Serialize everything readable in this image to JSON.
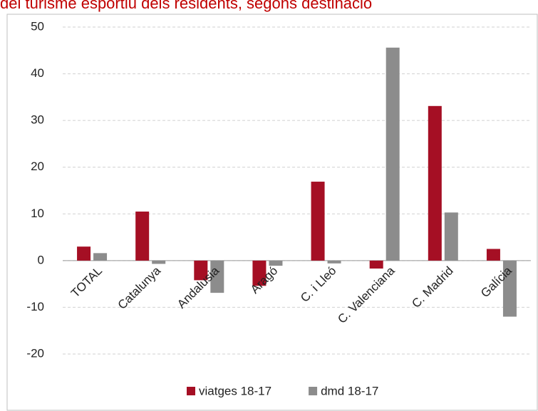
{
  "chart_data": {
    "type": "bar",
    "title": "del turisme esportiu dels residents, segons destinació",
    "categories": [
      "TOTAL",
      "Catalunya",
      "Andalusia",
      "Aragó",
      "C. i Lleó",
      "C. Valenciana",
      "C. Madrid",
      "Galícia"
    ],
    "series": [
      {
        "name": "viatges 18-17",
        "color": "#a50f24",
        "values": [
          3.0,
          10.5,
          -4.2,
          -5.4,
          16.9,
          -1.7,
          33.1,
          2.5
        ]
      },
      {
        "name": "dmd 18-17",
        "color": "#8c8c8c",
        "values": [
          1.6,
          -0.7,
          -6.9,
          -1.1,
          -0.6,
          45.6,
          10.3,
          -12.0
        ]
      }
    ],
    "ylim": [
      -20,
      50
    ],
    "yticks": [
      -20,
      -10,
      0,
      10,
      20,
      30,
      40,
      50
    ],
    "grid": true,
    "legend": "bottom"
  }
}
